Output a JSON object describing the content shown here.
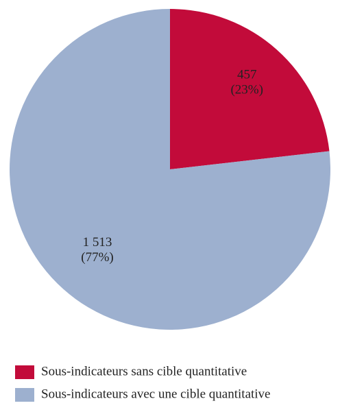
{
  "chart_data": {
    "type": "pie",
    "categories": [
      "Sous-indicateurs sans cible quantitative",
      "Sous-indicateurs avec une cible quantitative"
    ],
    "values": [
      457,
      1513
    ],
    "value_labels": [
      "457",
      "1 513"
    ],
    "percents": [
      23,
      77
    ],
    "percent_labels": [
      "(23%)",
      "(77%)"
    ],
    "colors": [
      "#c20b3a",
      "#9db0cf"
    ]
  }
}
